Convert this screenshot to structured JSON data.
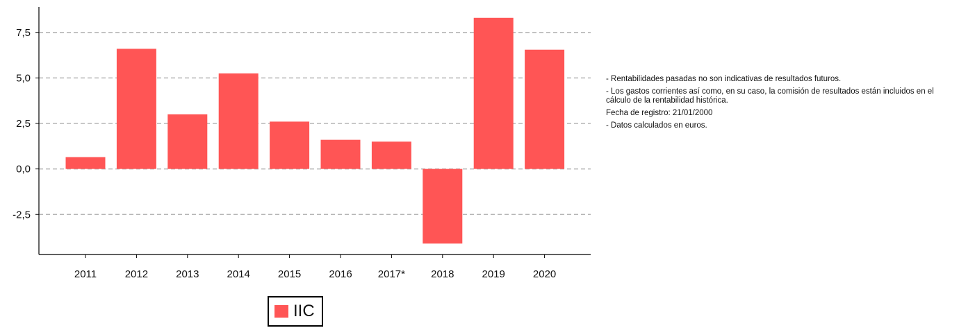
{
  "chart_data": {
    "type": "bar",
    "categories": [
      "2011",
      "2012",
      "2013",
      "2014",
      "2015",
      "2016",
      "2017*",
      "2018",
      "2019",
      "2020"
    ],
    "series": [
      {
        "name": "IIC",
        "values": [
          0.65,
          6.6,
          3.0,
          5.25,
          2.6,
          1.6,
          1.5,
          -4.1,
          8.3,
          6.55
        ],
        "color": "#ff5555"
      }
    ],
    "yticks": [
      -2.5,
      0.0,
      2.5,
      5.0,
      7.5
    ],
    "ytick_labels": [
      "-2,5",
      "0,0",
      "2,5",
      "5,0",
      "7,5"
    ],
    "ylim": [
      -4.7,
      8.9
    ],
    "grid": "horizontal dashed",
    "legend_position": "bottom"
  },
  "notes": [
    "- Rentabilidades pasadas no son indicativas de resultados futuros.",
    "- Los gastos corrientes así como, en su caso, la comisión de resultados están incluidos en el cálculo de la rentabilidad histórica.",
    "Fecha de registro: 21/01/2000",
    "- Datos calculados en euros."
  ],
  "legend": {
    "label": "IIC",
    "color": "#ff5555"
  }
}
